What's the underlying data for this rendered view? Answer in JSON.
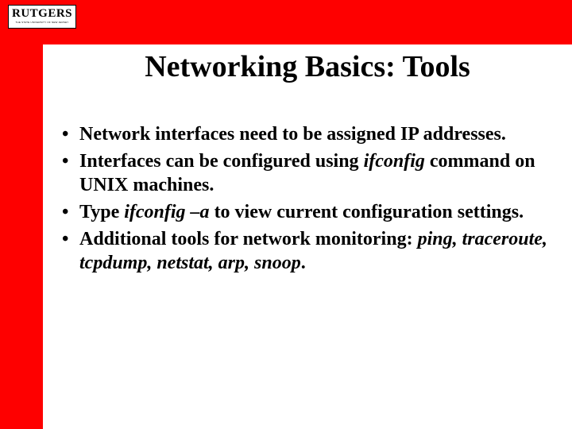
{
  "colors": {
    "accent": "#fe0000",
    "background": "#ffffff",
    "text": "#000000",
    "logo_border": "#000000"
  },
  "layout": {
    "slide_width": 720,
    "slide_height": 540,
    "top_bar_height": 56,
    "left_bar_width": 54
  },
  "logo": {
    "text": "RUTGERS",
    "subtext": "THE STATE UNIVERSITY OF NEW JERSEY"
  },
  "title": "Networking Basics: Tools",
  "typography": {
    "title_fontsize": 38,
    "body_fontsize": 24,
    "font_family": "Times New Roman"
  },
  "bullets": [
    {
      "runs": [
        {
          "t": "Network interfaces need to be assigned IP addresses.",
          "i": false
        }
      ]
    },
    {
      "runs": [
        {
          "t": "Interfaces can be configured using ",
          "i": false
        },
        {
          "t": "ifconfig",
          "i": true
        },
        {
          "t": " command on UNIX machines.",
          "i": false
        }
      ]
    },
    {
      "runs": [
        {
          "t": "Type ",
          "i": false
        },
        {
          "t": "ifconfig –a",
          "i": true
        },
        {
          "t": " to view current configuration settings.",
          "i": false
        }
      ]
    },
    {
      "runs": [
        {
          "t": "Additional tools for network monitoring: ",
          "i": false
        },
        {
          "t": "ping, traceroute, tcpdump, netstat, arp, snoop",
          "i": true
        },
        {
          "t": ".",
          "i": false
        }
      ]
    }
  ]
}
